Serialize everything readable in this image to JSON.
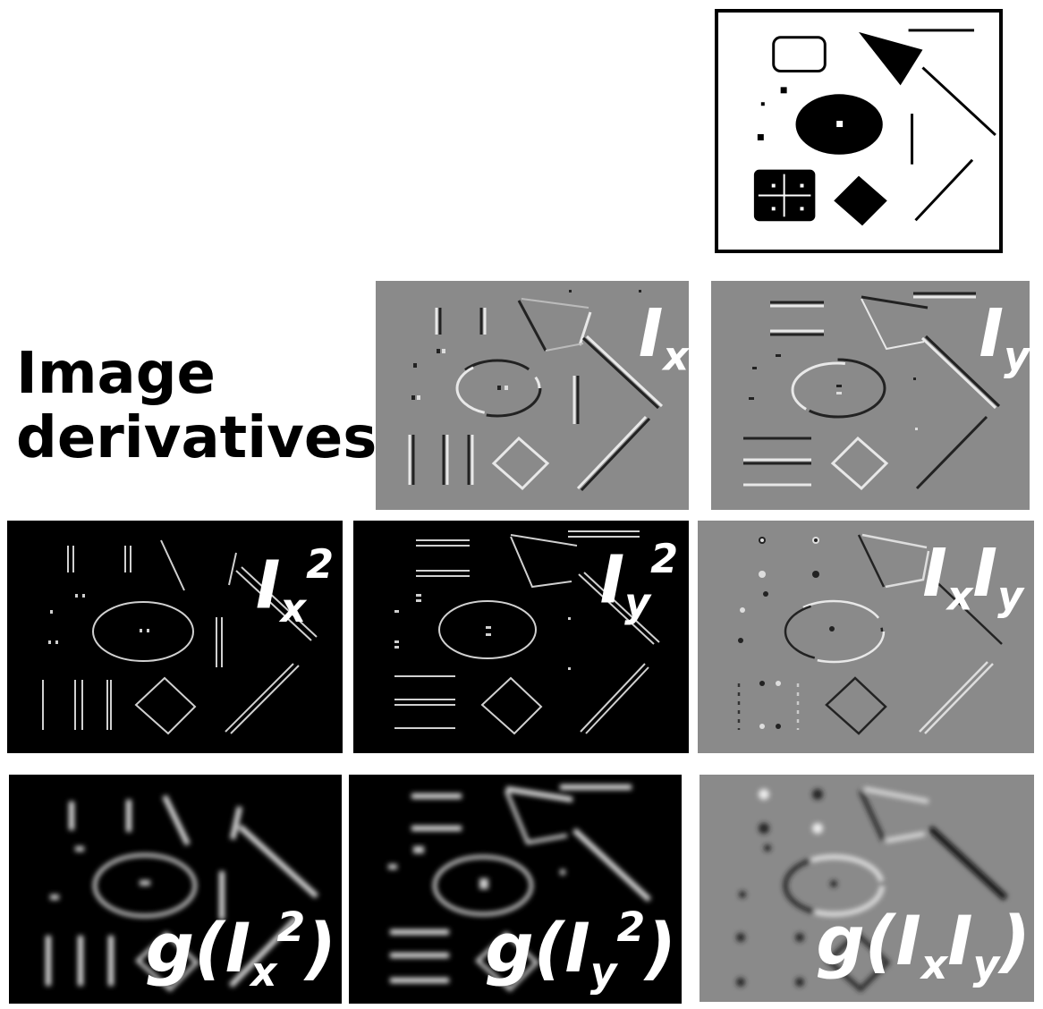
{
  "title": {
    "line1": "Image",
    "line2": "derivatives"
  },
  "panels": {
    "ix": {
      "base": "I",
      "sub": "x"
    },
    "iy": {
      "base": "I",
      "sub": "y"
    },
    "ix2": {
      "base": "I",
      "sub": "x",
      "sup": "2"
    },
    "iy2": {
      "base": "I",
      "sub": "y",
      "sup": "2"
    },
    "ixiy": {
      "base1": "I",
      "sub1": "x",
      "base2": "I",
      "sub2": "y"
    },
    "gix2": {
      "pre": "g(",
      "base": "I",
      "sub": "x",
      "sup": "2",
      "post": ")"
    },
    "giy2": {
      "pre": "g(",
      "base": "I",
      "sub": "y",
      "sup": "2",
      "post": ")"
    },
    "gixiy": {
      "pre": "g(",
      "base1": "I",
      "sub1": "x",
      "base2": "I",
      "sub2": "y",
      "post": ")"
    }
  },
  "colors": {
    "gray_bg": "#8a8a8a",
    "black_bg": "#000000",
    "label": "#ffffff"
  }
}
